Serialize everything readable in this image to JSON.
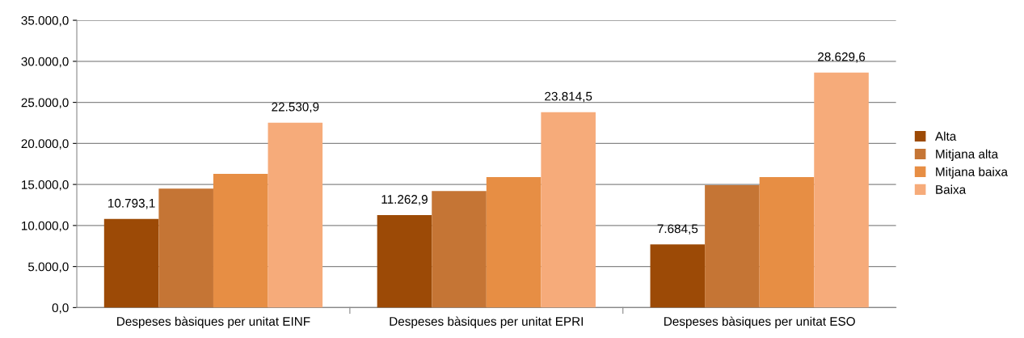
{
  "chart_data": {
    "type": "bar",
    "categories": [
      "Despeses bàsiques per unitat EINF",
      "Despeses bàsiques per unitat EPRI",
      "Despeses bàsiques per unitat ESO"
    ],
    "series": [
      {
        "name": "Alta",
        "color": "#9c4a06",
        "values": [
          10793.1,
          11262.9,
          7684.5
        ],
        "value_labels": [
          "10.793,1",
          "11.262,9",
          "7.684,5"
        ]
      },
      {
        "name": "Mitjana alta",
        "color": "#c57535",
        "values": [
          14500,
          14200,
          14900
        ]
      },
      {
        "name": "Mitjana baixa",
        "color": "#e78e44",
        "values": [
          16300,
          15900,
          15900
        ]
      },
      {
        "name": "Baixa",
        "color": "#f6ab7a",
        "values": [
          22530.9,
          23814.5,
          28629.6
        ],
        "value_labels": [
          "22.530,9",
          "23.814,5",
          "28.629,6"
        ]
      }
    ],
    "ylim": [
      0,
      35000
    ],
    "yticks": [
      {
        "value": 0,
        "label": "0,0"
      },
      {
        "value": 5000,
        "label": "5.000,0"
      },
      {
        "value": 10000,
        "label": "10.000,0"
      },
      {
        "value": 15000,
        "label": "15.000,0"
      },
      {
        "value": 20000,
        "label": "20.000,0"
      },
      {
        "value": 25000,
        "label": "25.000,0"
      },
      {
        "value": 30000,
        "label": "30.000,0"
      },
      {
        "value": 35000,
        "label": "35.000,0"
      }
    ],
    "grid": "y",
    "legend": "right"
  }
}
